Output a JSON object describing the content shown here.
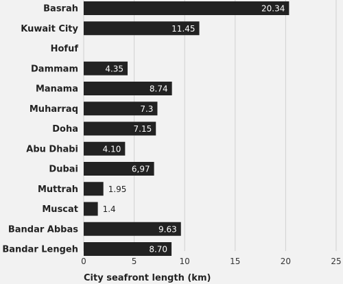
{
  "chart_data": {
    "type": "bar",
    "orientation": "horizontal",
    "categories": [
      "Basrah",
      "Kuwait City",
      "Hofuf",
      "Dammam",
      "Manama",
      "Muharraq",
      "Doha",
      "Abu Dhabi",
      "Dubai",
      "Muttrah",
      "Muscat",
      "Bandar Abbas",
      "Bandar Lengeh"
    ],
    "values": [
      20.34,
      11.45,
      0,
      4.35,
      8.74,
      7.3,
      7.15,
      4.1,
      6.97,
      1.95,
      1.4,
      9.63,
      8.7
    ],
    "value_labels": [
      "20.34",
      "11.45",
      "",
      "4.35",
      "8.74",
      "7.3",
      "7.15",
      "4.10",
      "6,97",
      "1.95",
      "1.4",
      "9.63",
      "8.70"
    ],
    "xlabel": "City seafront length (km)",
    "ylabel": "",
    "xlim": [
      0,
      25
    ],
    "xticks": [
      "0",
      "5",
      "10",
      "15",
      "20",
      "25"
    ],
    "grid": true,
    "colors": {
      "bar": "#222222",
      "background": "#f2f2f2",
      "grid": "#d0d0d0"
    }
  }
}
